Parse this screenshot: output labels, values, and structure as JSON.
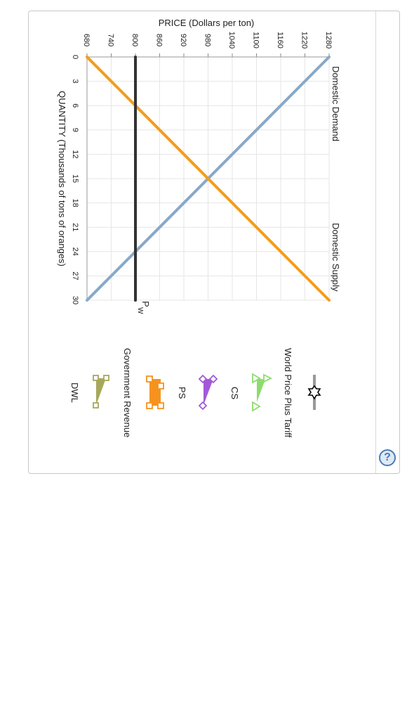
{
  "chart_data": {
    "type": "line",
    "xlabel": "QUANTITY (Thousands of tons of oranges)",
    "ylabel": "PRICE (Dollars per ton)",
    "xlim": [
      0,
      30
    ],
    "ylim": [
      680,
      1280
    ],
    "x_ticks": [
      "0",
      "3",
      "6",
      "9",
      "12",
      "15",
      "18",
      "21",
      "24",
      "27",
      "30"
    ],
    "y_ticks": [
      "680",
      "740",
      "800",
      "860",
      "920",
      "980",
      "1040",
      "1100",
      "1160",
      "1220",
      "1280"
    ],
    "grid": true,
    "series": [
      {
        "name": "Domestic Demand",
        "color": "#87a9c9",
        "points": [
          [
            0,
            1280
          ],
          [
            30,
            680
          ]
        ]
      },
      {
        "name": "Domestic Supply",
        "color": "#f39c1c",
        "points": [
          [
            0,
            680
          ],
          [
            30,
            1280
          ]
        ]
      },
      {
        "name": "PW",
        "color": "#333333",
        "points": [
          [
            0,
            800
          ],
          [
            30,
            800
          ]
        ]
      }
    ],
    "world_price_label": {
      "main": "P",
      "sub": "W"
    }
  },
  "legend": {
    "items": [
      {
        "label": "",
        "icon": "star-line-tool-icon",
        "color": "#999999"
      },
      {
        "label": "World Price Plus Tariff",
        "icon": "green-triangle-tool-icon",
        "color": "#8ddc6e"
      },
      {
        "label": "CS",
        "icon": "purple-triangle-tool-icon",
        "color": "#a259d9"
      },
      {
        "label": "PS",
        "icon": "orange-rectangle-tool-icon",
        "color": "#f5931e"
      },
      {
        "label": "Government Revenue",
        "icon": "olive-triangle-tool-icon",
        "color": "#a8a85a"
      },
      {
        "label": "DWL",
        "icon": "",
        "color": ""
      }
    ]
  },
  "help": {
    "label": "?"
  }
}
